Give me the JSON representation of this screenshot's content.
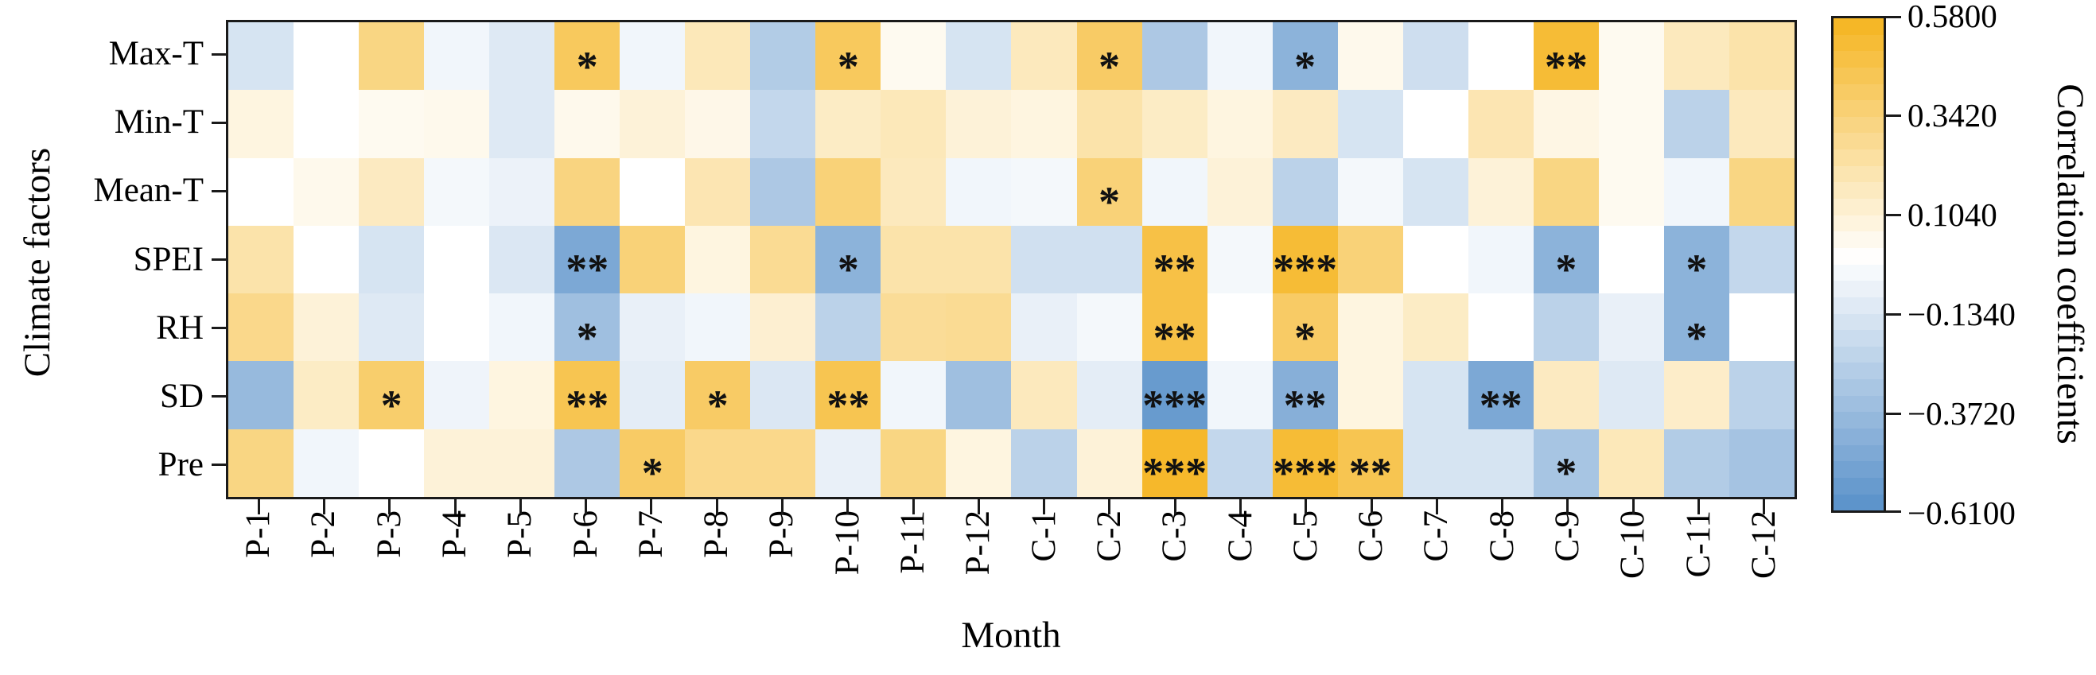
{
  "chart_data": {
    "type": "heatmap",
    "title": "",
    "xlabel": "Month",
    "ylabel": "Climate factors",
    "grid": false,
    "legend_position": "colorbar-right",
    "columns": [
      "P-1",
      "P-2",
      "P-3",
      "P-4",
      "P-5",
      "P-6",
      "P-7",
      "P-8",
      "P-9",
      "P-10",
      "P-11",
      "P-12",
      "C-1",
      "C-2",
      "C-3",
      "C-4",
      "C-5",
      "C-6",
      "C-7",
      "C-8",
      "C-9",
      "C-10",
      "C-11",
      "C-12"
    ],
    "rows": [
      "Max-T",
      "Min-T",
      "Mean-T",
      "SPEI",
      "RH",
      "SD",
      "Pre"
    ],
    "values": [
      [
        -0.15,
        0.0,
        0.32,
        -0.05,
        -0.12,
        0.42,
        -0.05,
        0.18,
        -0.28,
        0.42,
        0.04,
        -0.15,
        0.17,
        0.4,
        -0.3,
        -0.05,
        -0.42,
        0.05,
        -0.18,
        0.0,
        0.52,
        0.04,
        0.17,
        0.22
      ],
      [
        0.08,
        0.0,
        0.04,
        0.05,
        -0.12,
        0.05,
        0.1,
        0.06,
        -0.22,
        0.15,
        0.18,
        0.1,
        0.08,
        0.22,
        0.15,
        0.08,
        0.16,
        -0.15,
        0.0,
        0.2,
        0.07,
        0.04,
        -0.25,
        0.17
      ],
      [
        0.0,
        0.05,
        0.16,
        -0.04,
        -0.07,
        0.33,
        0.0,
        0.2,
        -0.3,
        0.35,
        0.17,
        -0.05,
        -0.04,
        0.35,
        -0.05,
        0.1,
        -0.25,
        -0.04,
        -0.15,
        0.1,
        0.32,
        0.04,
        -0.05,
        0.32
      ],
      [
        0.22,
        0.0,
        -0.15,
        0.0,
        -0.13,
        -0.48,
        0.35,
        0.08,
        0.28,
        -0.42,
        0.22,
        0.22,
        -0.17,
        -0.17,
        0.48,
        -0.04,
        0.52,
        0.35,
        0.0,
        -0.05,
        -0.42,
        0.0,
        -0.42,
        -0.22
      ],
      [
        0.3,
        0.1,
        -0.12,
        0.0,
        -0.05,
        -0.35,
        -0.08,
        -0.05,
        0.12,
        -0.25,
        0.27,
        0.28,
        -0.08,
        -0.04,
        0.48,
        0.0,
        0.4,
        0.08,
        0.15,
        0.0,
        -0.25,
        -0.08,
        -0.42,
        0.0
      ],
      [
        -0.38,
        0.15,
        0.38,
        -0.06,
        0.08,
        0.45,
        -0.1,
        0.4,
        -0.13,
        0.45,
        -0.05,
        -0.35,
        0.17,
        -0.1,
        -0.55,
        -0.05,
        -0.44,
        0.08,
        -0.15,
        -0.48,
        0.16,
        -0.12,
        0.14,
        -0.25
      ],
      [
        0.32,
        -0.05,
        0.0,
        0.1,
        0.1,
        -0.3,
        0.4,
        0.3,
        0.3,
        -0.08,
        0.32,
        0.08,
        -0.25,
        0.1,
        0.55,
        -0.22,
        0.52,
        0.45,
        -0.15,
        -0.15,
        -0.32,
        0.18,
        -0.28,
        -0.33
      ]
    ],
    "significance": [
      [
        "",
        "",
        "",
        "",
        "",
        "*",
        "",
        "",
        "",
        "*",
        "",
        "",
        "",
        "*",
        "",
        "",
        "*",
        "",
        "",
        "",
        "**",
        "",
        "",
        ""
      ],
      [
        "",
        "",
        "",
        "",
        "",
        "",
        "",
        "",
        "",
        "",
        "",
        "",
        "",
        "",
        "",
        "",
        "",
        "",
        "",
        "",
        "",
        "",
        "",
        ""
      ],
      [
        "",
        "",
        "",
        "",
        "",
        "",
        "",
        "",
        "",
        "",
        "",
        "",
        "",
        "*",
        "",
        "",
        "",
        "",
        "",
        "",
        "",
        "",
        "",
        ""
      ],
      [
        "",
        "",
        "",
        "",
        "",
        "**",
        "",
        "",
        "",
        "*",
        "",
        "",
        "",
        "",
        "**",
        "",
        "***",
        "",
        "",
        "",
        "*",
        "",
        "*",
        ""
      ],
      [
        "",
        "",
        "",
        "",
        "",
        "*",
        "",
        "",
        "",
        "",
        "",
        "",
        "",
        "",
        "**",
        "",
        "*",
        "",
        "",
        "",
        "",
        "",
        "*",
        ""
      ],
      [
        "",
        "",
        "*",
        "",
        "",
        "**",
        "",
        "*",
        "",
        "**",
        "",
        "",
        "",
        "",
        "***",
        "",
        "**",
        "",
        "",
        "**",
        "",
        "",
        "",
        ""
      ],
      [
        "",
        "",
        "",
        "",
        "",
        "",
        "*",
        "",
        "",
        "",
        "",
        "",
        "",
        "",
        "***",
        "",
        "***",
        "**",
        "",
        "",
        "*",
        "",
        "",
        ""
      ]
    ],
    "colorbar": {
      "label": "Correlation coefficients",
      "tick_labels": [
        "0.5800",
        "0.3420",
        "0.1040",
        "−0.1340",
        "−0.3720",
        "−0.6100"
      ],
      "tick_values": [
        0.58,
        0.342,
        0.104,
        -0.134,
        -0.372,
        -0.61
      ],
      "vmin": -0.61,
      "vmax": 0.58,
      "steps": 30,
      "color_positive_max": "#F5B41F",
      "color_zero": "#FFFFFF",
      "color_negative_max": "#5890C9"
    }
  }
}
